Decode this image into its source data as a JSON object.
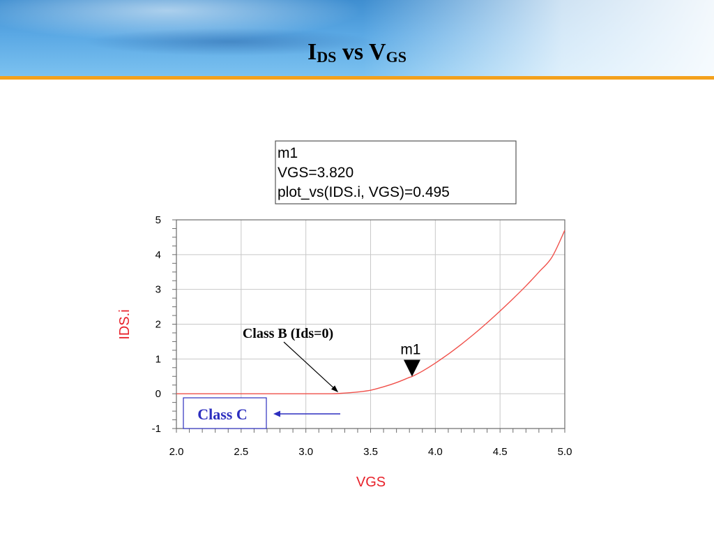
{
  "slide": {
    "title_main_1": "I",
    "title_sub_1": "DS",
    "title_mid": " vs V",
    "title_sub_2": "GS",
    "accent_color": "#f4a11c"
  },
  "chart_data": {
    "type": "line",
    "xlabel": "VGS",
    "ylabel": "IDS.i",
    "xlim": [
      2.0,
      5.0
    ],
    "ylim": [
      -1,
      5
    ],
    "x_ticks": [
      "2.0",
      "2.5",
      "3.0",
      "3.5",
      "4.0",
      "4.5",
      "5.0"
    ],
    "y_ticks": [
      "-1",
      "0",
      "1",
      "2",
      "3",
      "4",
      "5"
    ],
    "grid": true,
    "series": [
      {
        "color": "#f0504a",
        "x": [
          2.0,
          2.5,
          3.0,
          3.2,
          3.3,
          3.4,
          3.5,
          3.6,
          3.7,
          3.8,
          3.82,
          3.9,
          4.0,
          4.1,
          4.2,
          4.3,
          4.4,
          4.5,
          4.6,
          4.7,
          4.8,
          4.9,
          5.0
        ],
        "y": [
          0,
          0,
          0,
          0,
          0.02,
          0.05,
          0.1,
          0.2,
          0.32,
          0.47,
          0.495,
          0.65,
          0.88,
          1.14,
          1.42,
          1.72,
          2.04,
          2.38,
          2.73,
          3.1,
          3.5,
          3.92,
          4.7
        ]
      }
    ],
    "marker": {
      "name": "m1",
      "x": 3.82,
      "y": 0.495,
      "readout": [
        "m1",
        "VGS=3.820",
        "plot_vs(IDS.i, VGS)=0.495"
      ]
    },
    "annotations": [
      {
        "text": "Class B (Ids=0)",
        "target_x": 3.25,
        "target_y": 0
      },
      {
        "text": "Class C",
        "arrow_color": "#2d2fbf"
      }
    ]
  }
}
